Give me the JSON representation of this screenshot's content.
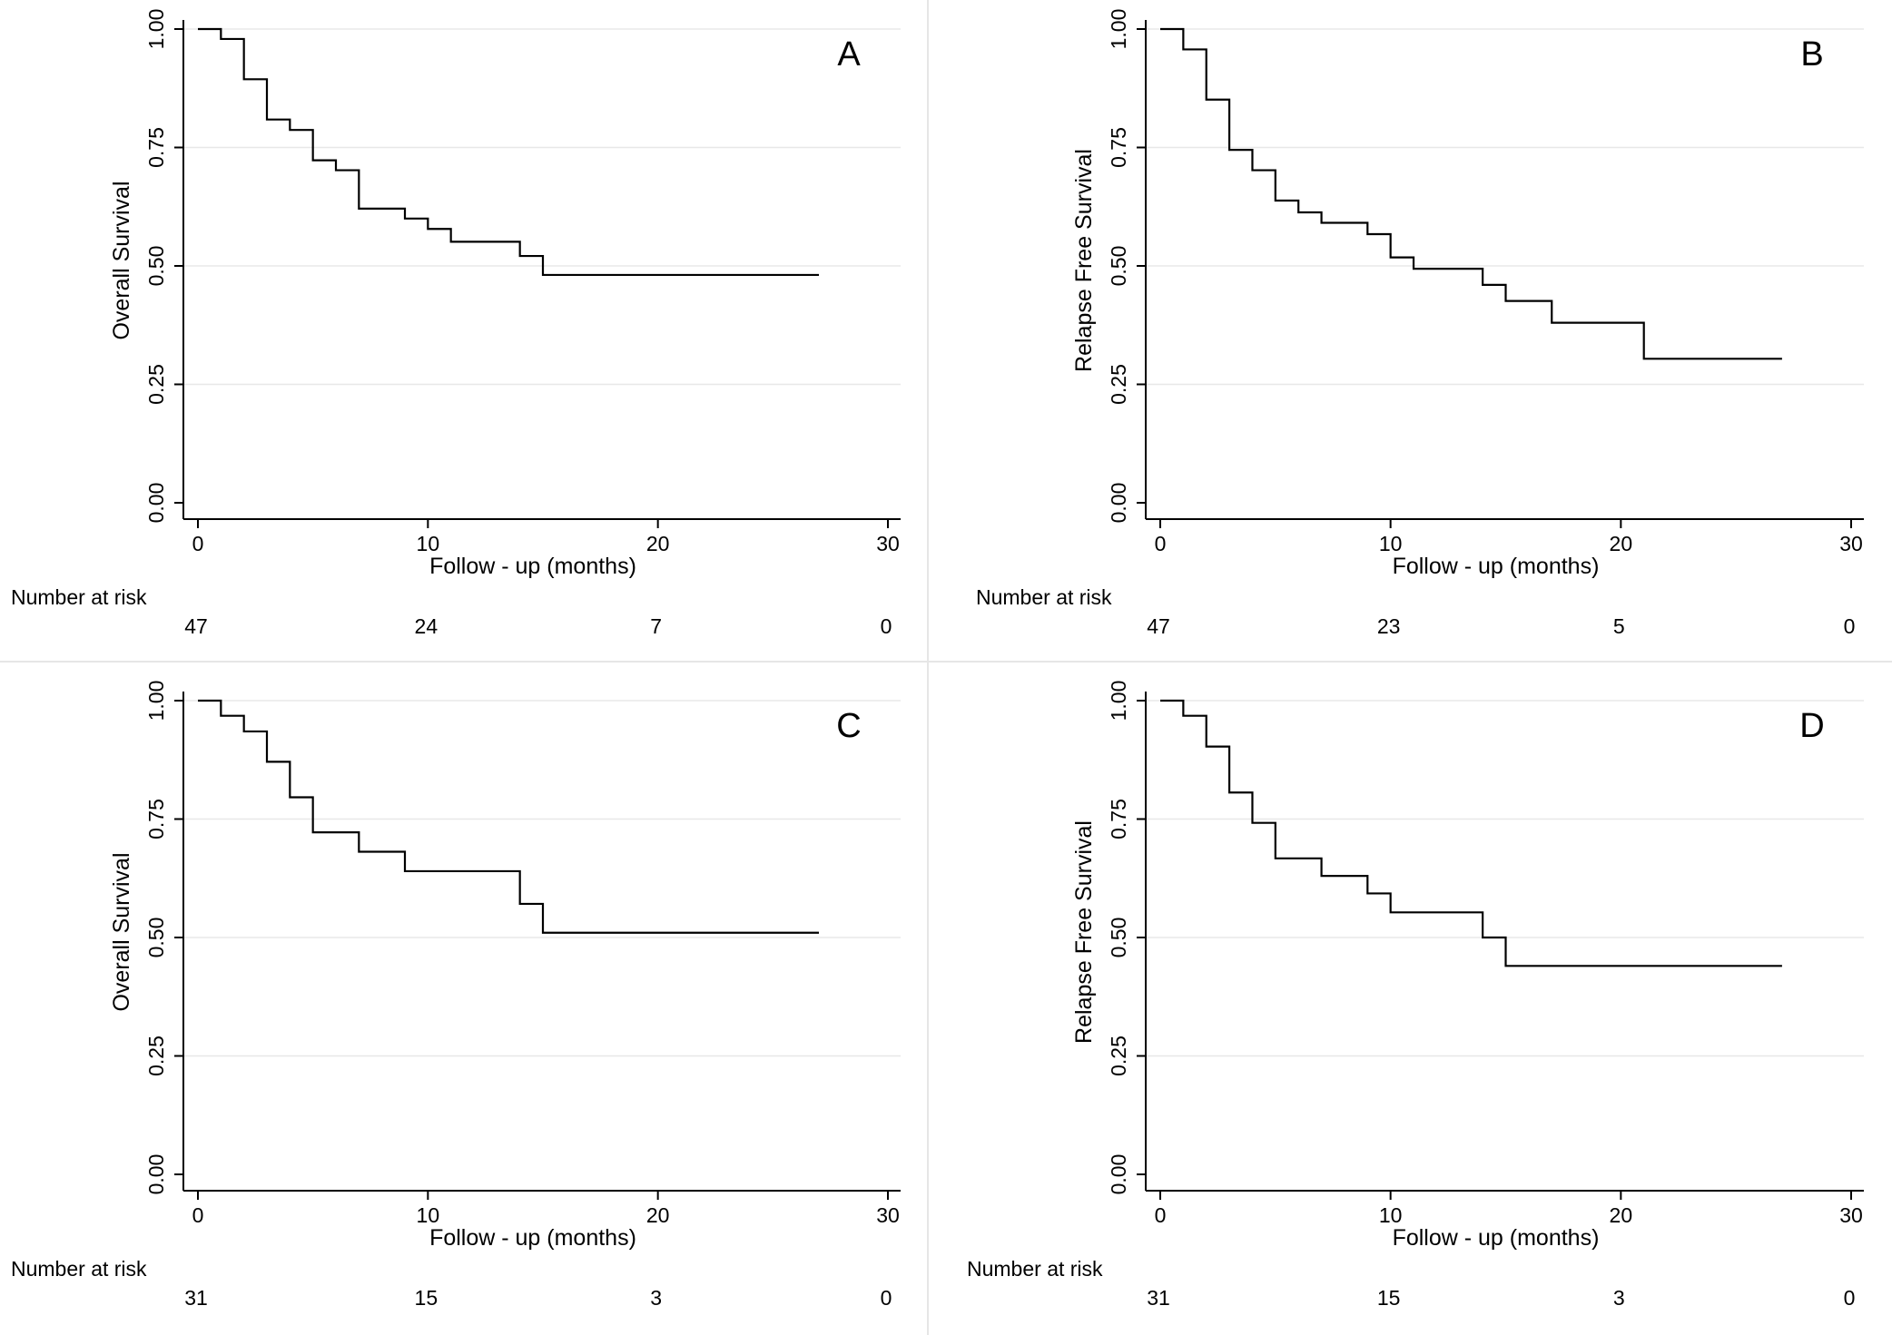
{
  "chart_data": [
    {
      "type": "line",
      "panel_label": "A",
      "xlabel": "Follow - up (months)",
      "ylabel": "Overall Survival",
      "xlim": [
        0,
        30
      ],
      "ylim": [
        0,
        1
      ],
      "xticks": [
        "0",
        "10",
        "20",
        "30"
      ],
      "yticks": [
        "0.00",
        "0.25",
        "0.50",
        "0.75",
        "1.00"
      ],
      "grid": true,
      "risk_table": {
        "label": "Number at risk",
        "values": [
          "47",
          "24",
          "7",
          "0"
        ]
      },
      "series": [
        {
          "x": [
            0,
            1,
            2,
            3,
            4,
            5,
            6,
            7,
            9,
            10,
            11,
            14,
            15,
            27
          ],
          "y": [
            1.0,
            0.979,
            0.894,
            0.809,
            0.787,
            0.723,
            0.702,
            0.621,
            0.6,
            0.578,
            0.551,
            0.521,
            0.481,
            0.481
          ]
        }
      ]
    },
    {
      "type": "line",
      "panel_label": "B",
      "xlabel": "Follow - up (months)",
      "ylabel": "Relapse Free Survival",
      "xlim": [
        0,
        30
      ],
      "ylim": [
        0,
        1
      ],
      "xticks": [
        "0",
        "10",
        "20",
        "30"
      ],
      "yticks": [
        "0.00",
        "0.25",
        "0.50",
        "0.75",
        "1.00"
      ],
      "grid": true,
      "risk_table": {
        "label": "Number at risk",
        "values": [
          "47",
          "23",
          "5",
          "0"
        ]
      },
      "series": [
        {
          "x": [
            0,
            1,
            2,
            3,
            4,
            5,
            6,
            7,
            9,
            10,
            11,
            14,
            15,
            17,
            21,
            27
          ],
          "y": [
            1.0,
            0.957,
            0.851,
            0.745,
            0.702,
            0.638,
            0.613,
            0.591,
            0.567,
            0.518,
            0.494,
            0.46,
            0.426,
            0.38,
            0.304,
            0.304
          ]
        }
      ]
    },
    {
      "type": "line",
      "panel_label": "C",
      "xlabel": "Follow - up (months)",
      "ylabel": "Overall Survival",
      "xlim": [
        0,
        30
      ],
      "ylim": [
        0,
        1
      ],
      "xticks": [
        "0",
        "10",
        "20",
        "30"
      ],
      "yticks": [
        "0.00",
        "0.25",
        "0.50",
        "0.75",
        "1.00"
      ],
      "grid": true,
      "risk_table": {
        "label": "Number at risk",
        "values": [
          "31",
          "15",
          "3",
          "0"
        ]
      },
      "series": [
        {
          "x": [
            0,
            1,
            2,
            3,
            4,
            5,
            7,
            9,
            14,
            15,
            27
          ],
          "y": [
            1.0,
            0.968,
            0.935,
            0.871,
            0.796,
            0.722,
            0.681,
            0.64,
            0.571,
            0.51,
            0.51
          ]
        }
      ]
    },
    {
      "type": "line",
      "panel_label": "D",
      "xlabel": "Follow - up (months)",
      "ylabel": "Relapse Free Survival",
      "xlim": [
        0,
        30
      ],
      "ylim": [
        0,
        1
      ],
      "xticks": [
        "0",
        "10",
        "20",
        "30"
      ],
      "yticks": [
        "0.00",
        "0.25",
        "0.50",
        "0.75",
        "1.00"
      ],
      "grid": true,
      "risk_table": {
        "label": "Number at risk",
        "values": [
          "31",
          "15",
          "3",
          "0"
        ]
      },
      "series": [
        {
          "x": [
            0,
            1,
            2,
            3,
            4,
            5,
            7,
            9,
            10,
            14,
            15,
            27
          ],
          "y": [
            1.0,
            0.968,
            0.903,
            0.806,
            0.742,
            0.667,
            0.63,
            0.593,
            0.553,
            0.5,
            0.44,
            0.44
          ]
        }
      ]
    }
  ]
}
